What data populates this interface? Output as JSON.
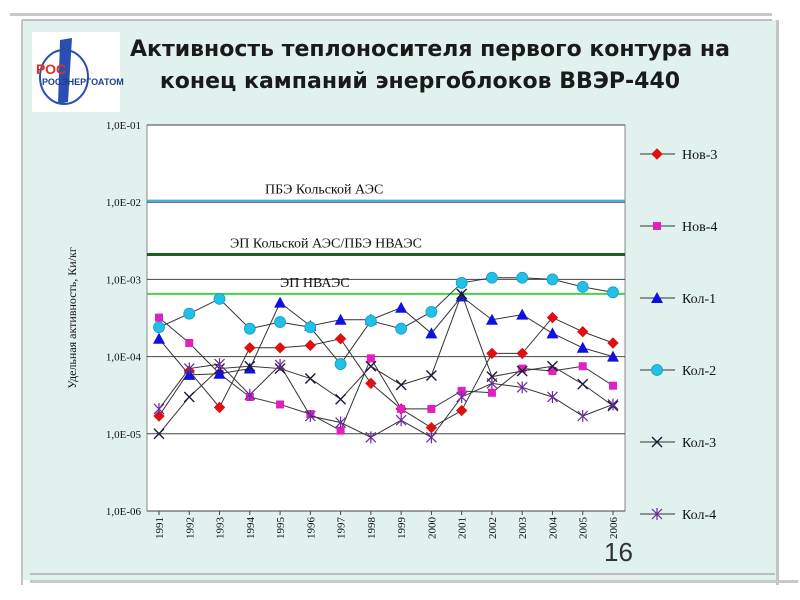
{
  "slide": {
    "title_line1": "Активность теплоносителя первого контура на",
    "title_line2": "конец кампаний энергоблоков ВВЭР-440",
    "logo_text": "РОСЭНЕРГОАТОМ",
    "page_number": "16"
  },
  "chart_data": {
    "type": "line",
    "ylabel": "Удельная активность, Ки/кг",
    "y_scale": "log",
    "ylim": [
      1e-06,
      0.1
    ],
    "y_ticks": [
      {
        "value": 0.1,
        "label": "1,0E-01"
      },
      {
        "value": 0.01,
        "label": "1,0E-02"
      },
      {
        "value": 0.001,
        "label": "1,0E-03"
      },
      {
        "value": 0.0001,
        "label": "1,0E-04"
      },
      {
        "value": 1e-05,
        "label": "1,0E-05"
      },
      {
        "value": 1e-06,
        "label": "1,0E-06"
      }
    ],
    "categories": [
      "1991",
      "1992",
      "1993",
      "1994",
      "1995",
      "1996",
      "1997",
      "1998",
      "1999",
      "2000",
      "2001",
      "2002",
      "2003",
      "2004",
      "2005",
      "2006"
    ],
    "reference_lines": [
      {
        "label": "ПБЭ Кольской АЭС",
        "value": 0.0105,
        "color": "#33b3e6"
      },
      {
        "label": "ЭП Кольской АЭС/ПБЭ НВАЭС",
        "value": 0.0021,
        "color": "#1e5e20"
      },
      {
        "label": "ЭП НВАЭС",
        "value": 0.00065,
        "color": "#4cd04c"
      }
    ],
    "legend_position": "right",
    "series": [
      {
        "name": "Нов-3",
        "color": "#e01010",
        "marker": "diamond",
        "values": [
          1.7e-05,
          6.5e-05,
          2.2e-05,
          0.00013,
          0.00013,
          0.00014,
          0.00017,
          4.5e-05,
          2.1e-05,
          1.2e-05,
          2e-05,
          0.00011,
          0.00011,
          0.00032,
          0.00021,
          0.00015
        ]
      },
      {
        "name": "Нов-4",
        "color": "#e020c0",
        "marker": "square",
        "values": [
          0.00032,
          0.00015,
          6e-05,
          3e-05,
          2.4e-05,
          1.8e-05,
          1.1e-05,
          9.5e-05,
          2.1e-05,
          2.1e-05,
          3.6e-05,
          3.4e-05,
          7e-05,
          6.5e-05,
          7.5e-05,
          4.2e-05
        ]
      },
      {
        "name": "Кол-1",
        "color": "#1010e0",
        "marker": "triangle",
        "values": [
          0.00017,
          5.8e-05,
          6e-05,
          7e-05,
          0.0005,
          0.00025,
          0.0003,
          0.0003,
          0.00043,
          0.0002,
          0.0006,
          0.0003,
          0.00035,
          0.0002,
          0.00013,
          0.0001
        ]
      },
      {
        "name": "Кол-2",
        "color": "#20c0e8",
        "marker": "circle",
        "values": [
          0.00024,
          0.00036,
          0.00056,
          0.00023,
          0.00028,
          0.00024,
          8e-05,
          0.00029,
          0.00023,
          0.00038,
          0.0009,
          0.00105,
          0.00105,
          0.001,
          0.0008,
          0.00068
        ]
      },
      {
        "name": "Кол-3",
        "color": "#1a1a3a",
        "marker": "x",
        "values": [
          1e-05,
          3e-05,
          7e-05,
          7.5e-05,
          7e-05,
          5.2e-05,
          2.8e-05,
          7.5e-05,
          4.3e-05,
          5.7e-05,
          0.00065,
          5.5e-05,
          6.5e-05,
          7.5e-05,
          4.4e-05,
          2.3e-05
        ]
      },
      {
        "name": "Кол-4",
        "color": "#6a2aa0",
        "marker": "star",
        "values": [
          2.1e-05,
          7e-05,
          8e-05,
          3.2e-05,
          7.8e-05,
          1.7e-05,
          1.4e-05,
          9e-06,
          1.5e-05,
          9e-06,
          3e-05,
          4.5e-05,
          4e-05,
          3e-05,
          1.7e-05,
          2.4e-05
        ]
      }
    ]
  }
}
